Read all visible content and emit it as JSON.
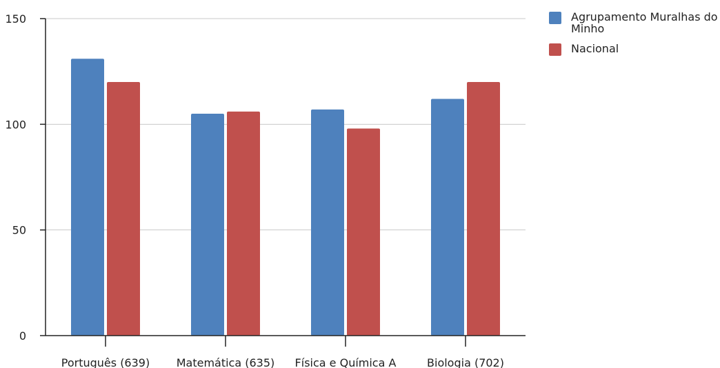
{
  "chart_data": {
    "type": "bar",
    "categories": [
      "Português (639)",
      "Matemática (635)",
      "Física e Química A",
      "Biologia (702)"
    ],
    "series": [
      {
        "name": "Agrupamento Muralhas do Minho",
        "values": [
          131,
          105,
          107,
          112
        ],
        "color": "#4e81bd"
      },
      {
        "name": "Nacional",
        "values": [
          120,
          106,
          98,
          120
        ],
        "color": "#c0504d"
      }
    ],
    "title": "",
    "xlabel": "",
    "ylabel": "",
    "ylim": [
      0,
      150
    ],
    "yticks": [
      0,
      50,
      100,
      150
    ],
    "grid": true,
    "legend_position": "top-right"
  }
}
